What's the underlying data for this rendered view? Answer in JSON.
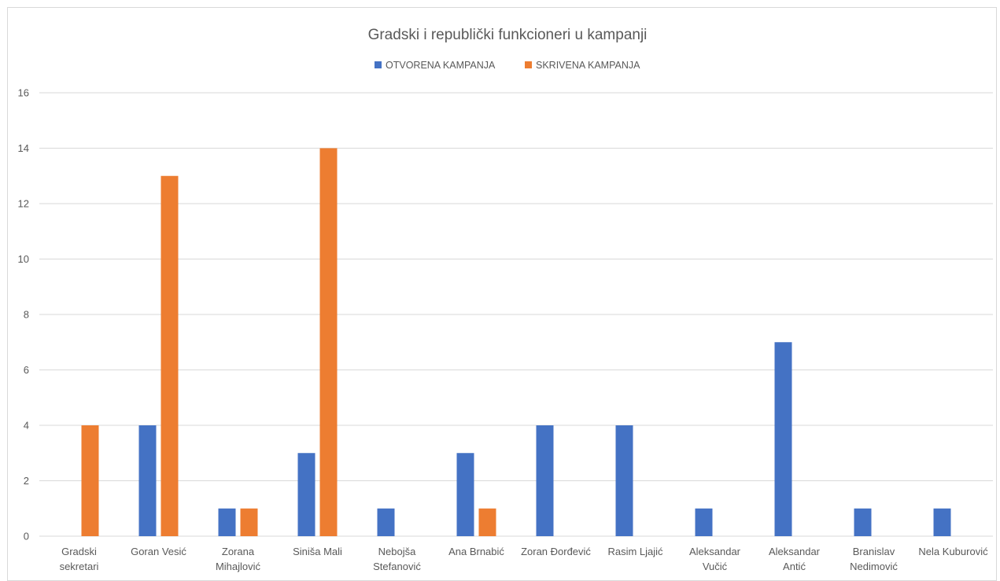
{
  "chart_data": {
    "type": "bar",
    "title": "Gradski i republički funkcioneri u kampanji",
    "categories": [
      [
        "Gradski",
        "sekretari"
      ],
      [
        "Goran Vesić"
      ],
      [
        "Zorana",
        "Mihajlović"
      ],
      [
        "Siniša Mali"
      ],
      [
        "Nebojša",
        "Stefanović"
      ],
      [
        "Ana Brnabić"
      ],
      [
        "Zoran Đorđević"
      ],
      [
        "Rasim Ljajić"
      ],
      [
        "Aleksandar",
        "Vučić"
      ],
      [
        "Aleksandar",
        "Antić"
      ],
      [
        "Branislav",
        "Nedimović"
      ],
      [
        "Nela Kuburović"
      ]
    ],
    "series": [
      {
        "name": "OTVORENA KAMPANJA",
        "color": "#4472c4",
        "values": [
          0,
          4,
          1,
          3,
          1,
          3,
          4,
          4,
          1,
          7,
          1,
          1
        ]
      },
      {
        "name": "SKRIVENA KAMPANJA",
        "color": "#ed7d31",
        "values": [
          4,
          13,
          1,
          14,
          0,
          1,
          0,
          0,
          0,
          0,
          0,
          0
        ]
      }
    ],
    "ylim": [
      0,
      16
    ],
    "yticks": [
      "0",
      "2",
      "4",
      "6",
      "8",
      "10",
      "12",
      "14",
      "16"
    ],
    "grid": true,
    "legend": "top-center",
    "gridColor": "#d9d9d9"
  }
}
